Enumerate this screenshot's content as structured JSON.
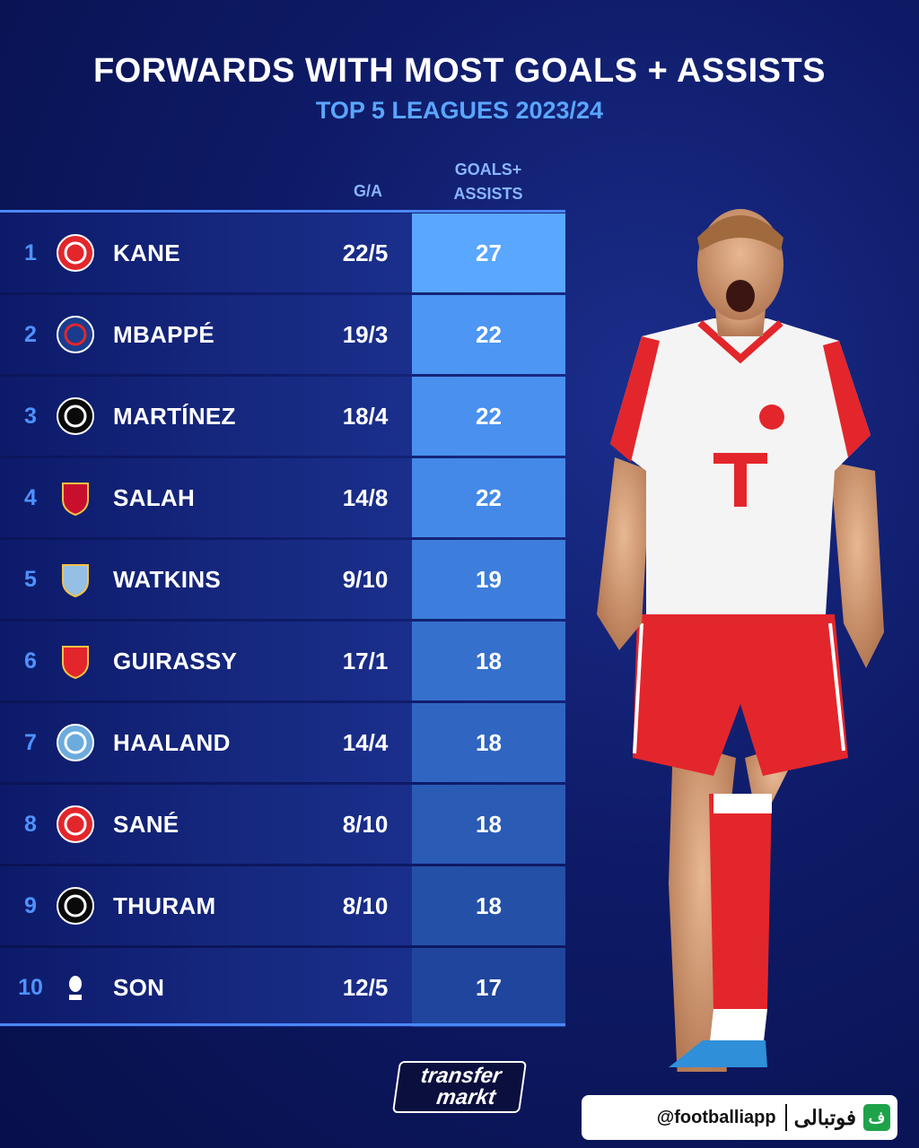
{
  "title": "FORWARDS WITH MOST GOALS + ASSISTS",
  "subtitle": "TOP 5 LEAGUES 2023/24",
  "columns": {
    "ga": "G/A",
    "total": "GOALS+\nASSISTS"
  },
  "rows": [
    {
      "rank": "1",
      "club_icon": "bayern-munich-crest-icon",
      "name": "KANE",
      "ga": "22/5",
      "total": "27"
    },
    {
      "rank": "2",
      "club_icon": "psg-crest-icon",
      "name": "MBAPPÉ",
      "ga": "19/3",
      "total": "22"
    },
    {
      "rank": "3",
      "club_icon": "inter-milan-crest-icon",
      "name": "MARTÍNEZ",
      "ga": "18/4",
      "total": "22"
    },
    {
      "rank": "4",
      "club_icon": "liverpool-crest-icon",
      "name": "SALAH",
      "ga": "14/8",
      "total": "22"
    },
    {
      "rank": "5",
      "club_icon": "aston-villa-crest-icon",
      "name": "WATKINS",
      "ga": "9/10",
      "total": "19"
    },
    {
      "rank": "6",
      "club_icon": "stuttgart-crest-icon",
      "name": "GUIRASSY",
      "ga": "17/1",
      "total": "18"
    },
    {
      "rank": "7",
      "club_icon": "manchester-city-crest-icon",
      "name": "HAALAND",
      "ga": "14/4",
      "total": "18"
    },
    {
      "rank": "8",
      "club_icon": "bayern-munich-crest-icon",
      "name": "SANÉ",
      "ga": "8/10",
      "total": "18"
    },
    {
      "rank": "9",
      "club_icon": "inter-milan-crest-icon",
      "name": "THURAM",
      "ga": "8/10",
      "total": "18"
    },
    {
      "rank": "10",
      "club_icon": "tottenham-crest-icon",
      "name": "SON",
      "ga": "12/5",
      "total": "17"
    }
  ],
  "total_column_colors": [
    "#5aa7ff",
    "#4d96f3",
    "#4a91ef",
    "#4489e8",
    "#3d7ddb",
    "#3570cc",
    "#3066c2",
    "#2a5bb5",
    "#2450a8",
    "#1f469c"
  ],
  "source_logo": {
    "line1": "transfer",
    "line2": "markt"
  },
  "watermark": {
    "handle": "@footballiapp",
    "brand": "فوتبالی",
    "mark": "ف"
  },
  "colors": {
    "accent": "#4f92ff",
    "subtitle": "#5aa6ff",
    "background": "#0e1a66"
  }
}
